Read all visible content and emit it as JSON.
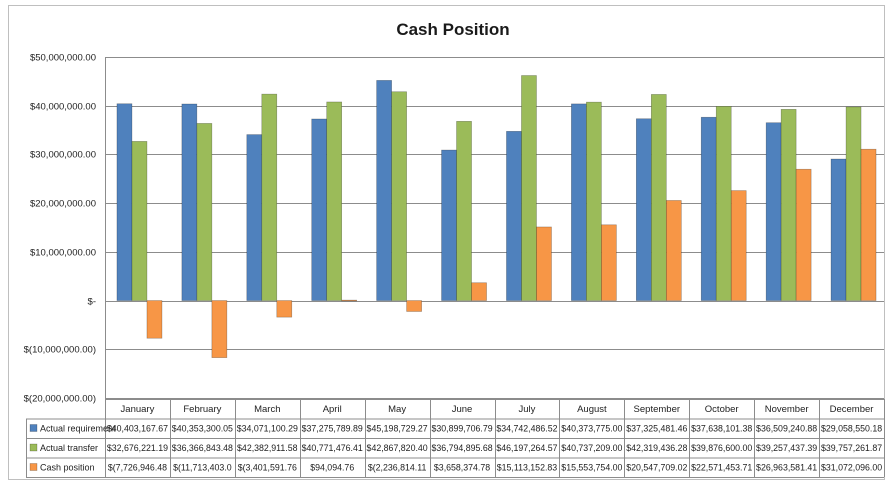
{
  "chart_data": {
    "type": "bar",
    "title": "Cash Position",
    "categories": [
      "January",
      "February",
      "March",
      "April",
      "May",
      "June",
      "July",
      "August",
      "September",
      "October",
      "November",
      "December"
    ],
    "ylim": [
      -20000000,
      50000000
    ],
    "yticks": [
      50000000,
      40000000,
      30000000,
      20000000,
      10000000,
      0,
      -10000000,
      -20000000
    ],
    "ytick_labels": [
      "$50,000,000.00",
      "$40,000,000.00",
      "$30,000,000.00",
      "$20,000,000.00",
      "$10,000,000.00",
      "$-",
      "$(10,000,000.00)",
      "$(20,000,000.00)"
    ],
    "grid": true,
    "legend": "data-table-left",
    "series": [
      {
        "name": "Actual requirement",
        "color": "#4f81bd",
        "values": [
          40403167.67,
          40353300.05,
          34071100.29,
          37275789.89,
          45198729.27,
          30899706.79,
          34742486.52,
          40373775.0,
          37325481.46,
          37638101.38,
          36509240.88,
          29058550.18
        ],
        "labels": [
          "$40,403,167.67",
          "$40,353,300.05",
          "$34,071,100.29",
          "$37,275,789.89",
          "$45,198,729.27",
          "$30,899,706.79",
          "$34,742,486.52",
          "$40,373,775.00",
          "$37,325,481.46",
          "$37,638,101.38",
          "$36,509,240.88",
          "$29,058,550.18"
        ]
      },
      {
        "name": "Actual transfer",
        "color": "#9bbb59",
        "values": [
          32676221.19,
          36366843.48,
          42382911.58,
          40771476.41,
          42867820.4,
          36794895.68,
          46197264.57,
          40737209.0,
          42319436.28,
          39876600.0,
          39257437.39,
          39757261.87
        ],
        "labels": [
          "$32,676,221.19",
          "$36,366,843.48",
          "$42,382,911.58",
          "$40,771,476.41",
          "$42,867,820.40",
          "$36,794,895.68",
          "$46,197,264.57",
          "$40,737,209.00",
          "$42,319,436.28",
          "$39,876,600.00",
          "$39,257,437.39",
          "$39,757,261.87"
        ]
      },
      {
        "name": "Cash position",
        "color": "#f79646",
        "values": [
          -7726946.48,
          -11713403.0,
          -3401591.76,
          94094.76,
          -2236814.11,
          3658374.78,
          15113152.83,
          15553754.0,
          20547709.02,
          22571453.71,
          26963581.41,
          31072096.0
        ],
        "labels": [
          "$(7,726,946.48",
          "$(11,713,403.0",
          "$(3,401,591.76",
          "$94,094.76",
          "$(2,236,814.11",
          "$3,658,374.78",
          "$15,113,152.83",
          "$15,553,754.00",
          "$20,547,709.02",
          "$22,571,453.71",
          "$26,963,581.41",
          "$31,072,096.00"
        ]
      }
    ]
  }
}
